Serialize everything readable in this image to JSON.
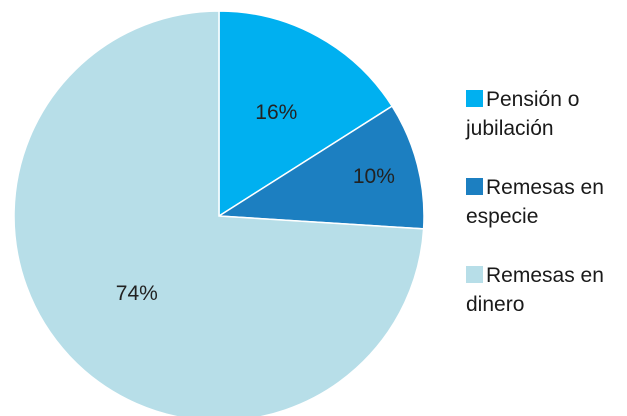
{
  "chart_data": {
    "type": "pie",
    "title": "",
    "categories": [
      "Pensión o jubilación",
      "Remesas en especie",
      "Remesas en dinero"
    ],
    "values": [
      16,
      10,
      74
    ],
    "value_labels": [
      "16%",
      "10%",
      "74%"
    ],
    "colors": [
      "#00b0f0",
      "#1c7fc1",
      "#b7dee8"
    ],
    "legend_position": "right",
    "legend_lines": [
      [
        "Pensión o",
        "jubilación"
      ],
      [
        "Remesas en",
        "especie"
      ],
      [
        "Remesas en",
        "dinero"
      ]
    ],
    "start": "top",
    "direction": "clockwise"
  }
}
